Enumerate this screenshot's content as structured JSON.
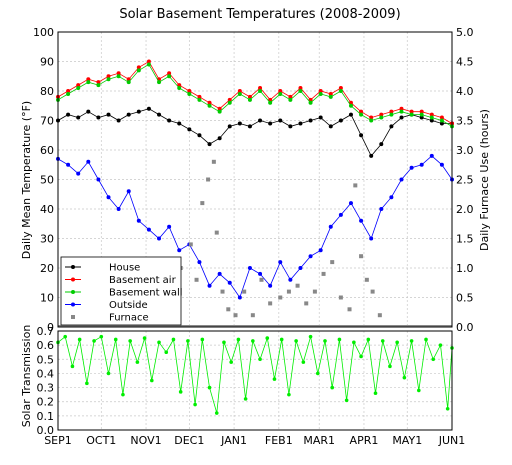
{
  "chart_data": [
    {
      "type": "line",
      "title": "Solar Basement Temperatures (2008-2009)",
      "ylabel": "Daily Mean Temperature (°F)",
      "y2label": "Daily Furnace Use (hours)",
      "ylim": [
        0,
        100
      ],
      "y2lim": [
        0,
        5
      ],
      "yticks": [
        "0",
        "10",
        "20",
        "30",
        "40",
        "50",
        "60",
        "70",
        "80",
        "90",
        "100"
      ],
      "y2ticks": [
        "0.0",
        "0.5",
        "1.0",
        "1.5",
        "2.0",
        "2.5",
        "3.0",
        "3.5",
        "4.0",
        "4.5",
        "5.0"
      ],
      "xticks": [
        "SEP1",
        "OCT1",
        "NOV1",
        "DEC1",
        "JAN1",
        "FEB1",
        "MAR1",
        "APR1",
        "MAY1",
        "JUN1"
      ],
      "xlim": [
        "2008-09-01",
        "2009-06-01"
      ],
      "grid": true,
      "legend_position": "lower-left",
      "colors": {
        "house": "#000000",
        "basement_air": "#ff0000",
        "basement_wall": "#00cc00",
        "outside": "#0000ff",
        "furnace": "#888888"
      },
      "series": [
        {
          "name": "House",
          "x": [
            "2008-09-01",
            "2008-09-08",
            "2008-09-15",
            "2008-09-22",
            "2008-09-29",
            "2008-10-06",
            "2008-10-13",
            "2008-10-20",
            "2008-10-27",
            "2008-11-03",
            "2008-11-10",
            "2008-11-17",
            "2008-11-24",
            "2008-12-01",
            "2008-12-08",
            "2008-12-15",
            "2008-12-22",
            "2008-12-29",
            "2009-01-05",
            "2009-01-12",
            "2009-01-19",
            "2009-01-26",
            "2009-02-02",
            "2009-02-09",
            "2009-02-16",
            "2009-02-23",
            "2009-03-02",
            "2009-03-09",
            "2009-03-16",
            "2009-03-23",
            "2009-03-30",
            "2009-04-06",
            "2009-04-13",
            "2009-04-20",
            "2009-04-27",
            "2009-05-04",
            "2009-05-11",
            "2009-05-18",
            "2009-05-25",
            "2009-06-01"
          ],
          "y": [
            70,
            72,
            71,
            73,
            71,
            72,
            70,
            72,
            73,
            74,
            72,
            70,
            69,
            67,
            65,
            62,
            64,
            68,
            69,
            68,
            70,
            69,
            70,
            68,
            69,
            70,
            71,
            68,
            70,
            72,
            65,
            58,
            62,
            68,
            71,
            72,
            71,
            70,
            69,
            69
          ]
        },
        {
          "name": "Basement air",
          "x": [
            "2008-09-01",
            "2008-09-08",
            "2008-09-15",
            "2008-09-22",
            "2008-09-29",
            "2008-10-06",
            "2008-10-13",
            "2008-10-20",
            "2008-10-27",
            "2008-11-03",
            "2008-11-10",
            "2008-11-17",
            "2008-11-24",
            "2008-12-01",
            "2008-12-08",
            "2008-12-15",
            "2008-12-22",
            "2008-12-29",
            "2009-01-05",
            "2009-01-12",
            "2009-01-19",
            "2009-01-26",
            "2009-02-02",
            "2009-02-09",
            "2009-02-16",
            "2009-02-23",
            "2009-03-02",
            "2009-03-09",
            "2009-03-16",
            "2009-03-23",
            "2009-03-30",
            "2009-04-06",
            "2009-04-13",
            "2009-04-20",
            "2009-04-27",
            "2009-05-04",
            "2009-05-11",
            "2009-05-18",
            "2009-05-25",
            "2009-06-01"
          ],
          "y": [
            78,
            80,
            82,
            84,
            83,
            85,
            86,
            84,
            88,
            90,
            84,
            86,
            82,
            80,
            78,
            76,
            74,
            77,
            80,
            78,
            81,
            77,
            80,
            78,
            81,
            77,
            80,
            79,
            81,
            76,
            73,
            71,
            72,
            73,
            74,
            73,
            73,
            72,
            71,
            69
          ]
        },
        {
          "name": "Basement wall",
          "x": [
            "2008-09-01",
            "2008-09-08",
            "2008-09-15",
            "2008-09-22",
            "2008-09-29",
            "2008-10-06",
            "2008-10-13",
            "2008-10-20",
            "2008-10-27",
            "2008-11-03",
            "2008-11-10",
            "2008-11-17",
            "2008-11-24",
            "2008-12-01",
            "2008-12-08",
            "2008-12-15",
            "2008-12-22",
            "2008-12-29",
            "2009-01-05",
            "2009-01-12",
            "2009-01-19",
            "2009-01-26",
            "2009-02-02",
            "2009-02-09",
            "2009-02-16",
            "2009-02-23",
            "2009-03-02",
            "2009-03-09",
            "2009-03-16",
            "2009-03-23",
            "2009-03-30",
            "2009-04-06",
            "2009-04-13",
            "2009-04-20",
            "2009-04-27",
            "2009-05-04",
            "2009-05-11",
            "2009-05-18",
            "2009-05-25",
            "2009-06-01"
          ],
          "y": [
            77,
            79,
            81,
            83,
            82,
            84,
            85,
            83,
            87,
            89,
            83,
            85,
            81,
            79,
            77,
            75,
            73,
            76,
            79,
            77,
            80,
            76,
            79,
            77,
            80,
            76,
            79,
            78,
            80,
            75,
            72,
            70,
            71,
            72,
            73,
            72,
            72,
            71,
            70,
            68
          ]
        },
        {
          "name": "Outside",
          "x": [
            "2008-09-01",
            "2008-09-08",
            "2008-09-15",
            "2008-09-22",
            "2008-09-29",
            "2008-10-06",
            "2008-10-13",
            "2008-10-20",
            "2008-10-27",
            "2008-11-03",
            "2008-11-10",
            "2008-11-17",
            "2008-11-24",
            "2008-12-01",
            "2008-12-08",
            "2008-12-15",
            "2008-12-22",
            "2008-12-29",
            "2009-01-05",
            "2009-01-12",
            "2009-01-19",
            "2009-01-26",
            "2009-02-02",
            "2009-02-09",
            "2009-02-16",
            "2009-02-23",
            "2009-03-02",
            "2009-03-09",
            "2009-03-16",
            "2009-03-23",
            "2009-03-30",
            "2009-04-06",
            "2009-04-13",
            "2009-04-20",
            "2009-04-27",
            "2009-05-04",
            "2009-05-11",
            "2009-05-18",
            "2009-05-25",
            "2009-06-01"
          ],
          "y": [
            57,
            55,
            52,
            56,
            50,
            44,
            40,
            46,
            36,
            33,
            30,
            34,
            26,
            28,
            22,
            14,
            18,
            15,
            10,
            20,
            18,
            14,
            22,
            16,
            20,
            24,
            26,
            34,
            38,
            42,
            36,
            30,
            40,
            44,
            50,
            54,
            55,
            58,
            55,
            50
          ]
        },
        {
          "name": "Furnace",
          "axis": "y2",
          "x": [
            "2008-11-25",
            "2008-12-02",
            "2008-12-06",
            "2008-12-10",
            "2008-12-14",
            "2008-12-18",
            "2008-12-20",
            "2008-12-24",
            "2008-12-28",
            "2009-01-02",
            "2009-01-08",
            "2009-01-14",
            "2009-01-20",
            "2009-01-26",
            "2009-02-02",
            "2009-02-08",
            "2009-02-14",
            "2009-02-20",
            "2009-02-26",
            "2009-03-04",
            "2009-03-10",
            "2009-03-16",
            "2009-03-22",
            "2009-03-26",
            "2009-03-30",
            "2009-04-03",
            "2009-04-07",
            "2009-04-12"
          ],
          "y": [
            1.0,
            1.4,
            0.8,
            2.1,
            2.5,
            2.8,
            1.6,
            0.6,
            0.3,
            0.2,
            0.6,
            0.2,
            0.8,
            0.4,
            0.5,
            0.6,
            0.7,
            0.4,
            0.6,
            0.9,
            1.1,
            0.5,
            0.3,
            2.4,
            1.2,
            0.8,
            0.6,
            0.2
          ]
        }
      ]
    },
    {
      "type": "line",
      "ylabel": "Solar Transmission",
      "ylim": [
        0,
        0.7
      ],
      "yticks": [
        "0.0",
        "0.1",
        "0.2",
        "0.3",
        "0.4",
        "0.5",
        "0.6",
        "0.7"
      ],
      "xticks": [
        "SEP1",
        "OCT1",
        "NOV1",
        "DEC1",
        "JAN1",
        "FEB1",
        "MAR1",
        "APR1",
        "MAY1",
        "JUN1"
      ],
      "xlim": [
        "2008-09-01",
        "2009-06-01"
      ],
      "grid": true,
      "color": "#00ee00",
      "series": [
        {
          "x": [
            "2008-09-01",
            "2008-09-06",
            "2008-09-11",
            "2008-09-16",
            "2008-09-21",
            "2008-09-26",
            "2008-10-01",
            "2008-10-06",
            "2008-10-11",
            "2008-10-16",
            "2008-10-21",
            "2008-10-26",
            "2008-10-31",
            "2008-11-05",
            "2008-11-10",
            "2008-11-15",
            "2008-11-20",
            "2008-11-25",
            "2008-11-30",
            "2008-12-05",
            "2008-12-10",
            "2008-12-15",
            "2008-12-20",
            "2008-12-25",
            "2008-12-30",
            "2009-01-04",
            "2009-01-09",
            "2009-01-14",
            "2009-01-19",
            "2009-01-24",
            "2009-01-29",
            "2009-02-03",
            "2009-02-08",
            "2009-02-13",
            "2009-02-18",
            "2009-02-23",
            "2009-02-28",
            "2009-03-05",
            "2009-03-10",
            "2009-03-15",
            "2009-03-20",
            "2009-03-25",
            "2009-03-30",
            "2009-04-04",
            "2009-04-09",
            "2009-04-14",
            "2009-04-19",
            "2009-04-24",
            "2009-04-29",
            "2009-05-04",
            "2009-05-09",
            "2009-05-14",
            "2009-05-19",
            "2009-05-24",
            "2009-05-29",
            "2009-06-01"
          ],
          "y": [
            0.62,
            0.66,
            0.45,
            0.64,
            0.33,
            0.63,
            0.66,
            0.4,
            0.64,
            0.25,
            0.63,
            0.48,
            0.65,
            0.35,
            0.62,
            0.55,
            0.64,
            0.27,
            0.63,
            0.18,
            0.64,
            0.3,
            0.12,
            0.62,
            0.48,
            0.64,
            0.22,
            0.63,
            0.5,
            0.65,
            0.36,
            0.64,
            0.25,
            0.63,
            0.48,
            0.66,
            0.4,
            0.63,
            0.3,
            0.64,
            0.21,
            0.62,
            0.52,
            0.64,
            0.26,
            0.63,
            0.45,
            0.62,
            0.37,
            0.63,
            0.28,
            0.64,
            0.5,
            0.6,
            0.15,
            0.58
          ]
        }
      ]
    }
  ]
}
